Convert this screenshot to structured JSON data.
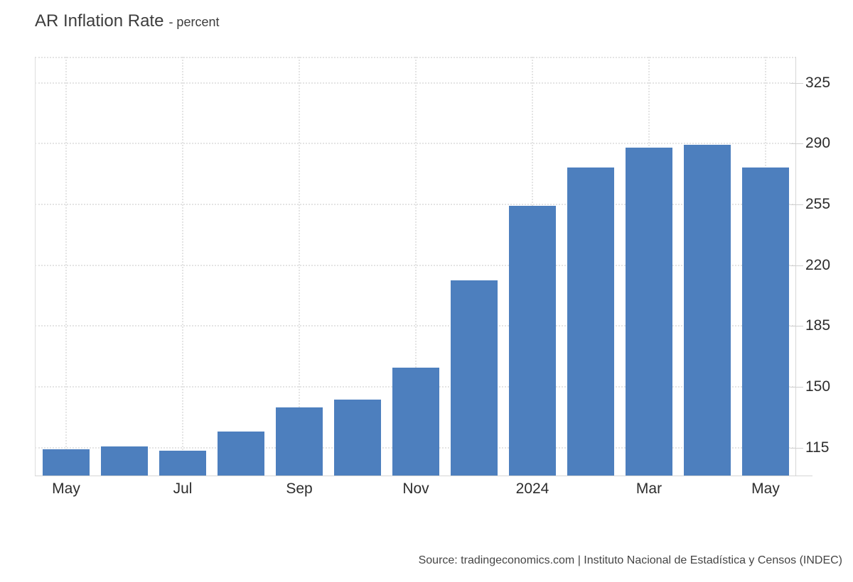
{
  "header": {
    "title": "AR Inflation Rate",
    "subtitle": "- percent"
  },
  "footer": {
    "source": "Source: tradingeconomics.com | Instituto Nacional de Estadística y Censos (INDEC)"
  },
  "colors": {
    "bar": "#4d7fbe",
    "grid": "#e4e4e4",
    "axis": "#d6d6d6",
    "tick_text": "#2d2d2d",
    "title_text": "#3d3d3d"
  },
  "chart_data": {
    "type": "bar",
    "title": "AR Inflation Rate",
    "ylabel": "percent",
    "values": [
      114.2,
      115.6,
      113.4,
      124.4,
      138.3,
      142.7,
      160.9,
      211.4,
      254.2,
      276.2,
      287.9,
      289.4,
      276.4
    ],
    "x_ticks": [
      {
        "index": 0,
        "label": "May"
      },
      {
        "index": 2,
        "label": "Jul"
      },
      {
        "index": 4,
        "label": "Sep"
      },
      {
        "index": 6,
        "label": "Nov"
      },
      {
        "index": 8,
        "label": "2024"
      },
      {
        "index": 10,
        "label": "Mar"
      },
      {
        "index": 12,
        "label": "May"
      }
    ],
    "y_ticks": [
      115,
      150,
      185,
      220,
      255,
      290,
      325
    ],
    "ylim": [
      99,
      340
    ],
    "grid": "dotted",
    "legend": "none",
    "y_axis_side": "right",
    "bar_color": "#4d7fbe"
  }
}
